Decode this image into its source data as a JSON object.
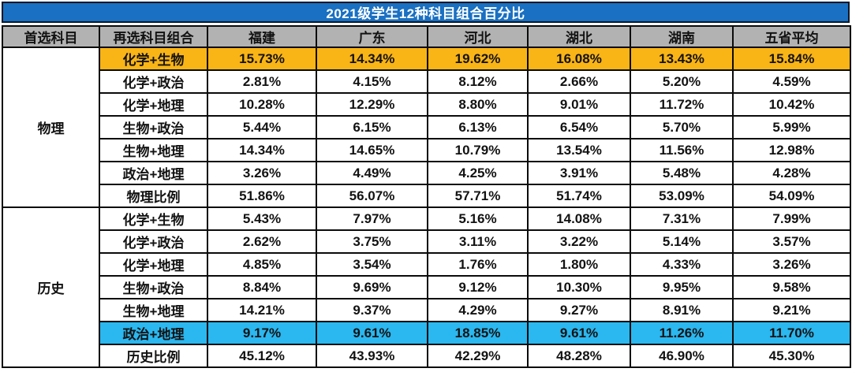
{
  "title": "2021级学生12种科目组合百分比",
  "columns": [
    "首选科目",
    "再选科目组合",
    "福建",
    "广东",
    "河北",
    "湖北",
    "湖南",
    "五省平均"
  ],
  "sections": [
    {
      "subject": "物理",
      "rows": [
        {
          "combo": "化学+生物",
          "highlight": "orange",
          "values": [
            "15.73%",
            "14.34%",
            "19.62%",
            "16.08%",
            "13.43%",
            "15.84%"
          ]
        },
        {
          "combo": "化学+政治",
          "highlight": "",
          "values": [
            "2.81%",
            "4.15%",
            "8.12%",
            "2.66%",
            "5.20%",
            "4.59%"
          ]
        },
        {
          "combo": "化学+地理",
          "highlight": "",
          "values": [
            "10.28%",
            "12.29%",
            "8.80%",
            "9.01%",
            "11.72%",
            "10.42%"
          ]
        },
        {
          "combo": "生物+政治",
          "highlight": "",
          "values": [
            "5.44%",
            "6.15%",
            "6.13%",
            "6.54%",
            "5.70%",
            "5.99%"
          ]
        },
        {
          "combo": "生物+地理",
          "highlight": "",
          "values": [
            "14.34%",
            "14.65%",
            "10.79%",
            "13.54%",
            "11.56%",
            "12.98%"
          ]
        },
        {
          "combo": "政治+地理",
          "highlight": "",
          "values": [
            "3.26%",
            "4.49%",
            "4.25%",
            "3.91%",
            "5.48%",
            "4.28%"
          ]
        },
        {
          "combo": "物理比例",
          "highlight": "",
          "values": [
            "51.86%",
            "56.07%",
            "57.71%",
            "51.74%",
            "53.09%",
            "54.09%"
          ]
        }
      ]
    },
    {
      "subject": "历史",
      "rows": [
        {
          "combo": "化学+生物",
          "highlight": "",
          "values": [
            "5.43%",
            "7.97%",
            "5.16%",
            "14.08%",
            "7.31%",
            "7.99%"
          ]
        },
        {
          "combo": "化学+政治",
          "highlight": "",
          "values": [
            "2.62%",
            "3.75%",
            "3.11%",
            "3.22%",
            "5.14%",
            "3.57%"
          ]
        },
        {
          "combo": "化学+地理",
          "highlight": "",
          "values": [
            "4.85%",
            "3.54%",
            "1.76%",
            "1.80%",
            "4.33%",
            "3.26%"
          ]
        },
        {
          "combo": "生物+政治",
          "highlight": "",
          "values": [
            "8.84%",
            "9.69%",
            "9.12%",
            "10.30%",
            "9.95%",
            "9.58%"
          ]
        },
        {
          "combo": "生物+地理",
          "highlight": "",
          "values": [
            "14.21%",
            "9.37%",
            "4.29%",
            "9.27%",
            "8.91%",
            "9.21%"
          ]
        },
        {
          "combo": "政治+地理",
          "highlight": "cyan",
          "values": [
            "9.17%",
            "9.61%",
            "18.85%",
            "9.61%",
            "11.26%",
            "11.70%"
          ]
        },
        {
          "combo": "历史比例",
          "highlight": "",
          "values": [
            "45.12%",
            "43.93%",
            "42.29%",
            "48.28%",
            "46.90%",
            "45.30%"
          ]
        }
      ]
    }
  ],
  "colors": {
    "title_bg": "#1a70c2",
    "title_text": "#ffffff",
    "header_bg": "#b2b2b2",
    "orange_highlight": "#f9b416",
    "cyan_highlight": "#2bb7ef",
    "border": "#0b0b0b",
    "body_text": "#121212"
  },
  "chart_data": {
    "type": "table",
    "title": "2021级学生12种科目组合百分比",
    "columns": [
      "首选科目",
      "再选科目组合",
      "福建",
      "广东",
      "河北",
      "湖北",
      "湖南",
      "五省平均"
    ],
    "rows": [
      [
        "物理",
        "化学+生物",
        "15.73%",
        "14.34%",
        "19.62%",
        "16.08%",
        "13.43%",
        "15.84%"
      ],
      [
        "物理",
        "化学+政治",
        "2.81%",
        "4.15%",
        "8.12%",
        "2.66%",
        "5.20%",
        "4.59%"
      ],
      [
        "物理",
        "化学+地理",
        "10.28%",
        "12.29%",
        "8.80%",
        "9.01%",
        "11.72%",
        "10.42%"
      ],
      [
        "物理",
        "生物+政治",
        "5.44%",
        "6.15%",
        "6.13%",
        "6.54%",
        "5.70%",
        "5.99%"
      ],
      [
        "物理",
        "生物+地理",
        "14.34%",
        "14.65%",
        "10.79%",
        "13.54%",
        "11.56%",
        "12.98%"
      ],
      [
        "物理",
        "政治+地理",
        "3.26%",
        "4.49%",
        "4.25%",
        "3.91%",
        "5.48%",
        "4.28%"
      ],
      [
        "物理",
        "物理比例",
        "51.86%",
        "56.07%",
        "57.71%",
        "51.74%",
        "53.09%",
        "54.09%"
      ],
      [
        "历史",
        "化学+生物",
        "5.43%",
        "7.97%",
        "5.16%",
        "14.08%",
        "7.31%",
        "7.99%"
      ],
      [
        "历史",
        "化学+政治",
        "2.62%",
        "3.75%",
        "3.11%",
        "3.22%",
        "5.14%",
        "3.57%"
      ],
      [
        "历史",
        "化学+地理",
        "4.85%",
        "3.54%",
        "1.76%",
        "1.80%",
        "4.33%",
        "3.26%"
      ],
      [
        "历史",
        "生物+政治",
        "8.84%",
        "9.69%",
        "9.12%",
        "10.30%",
        "9.95%",
        "9.58%"
      ],
      [
        "历史",
        "生物+地理",
        "14.21%",
        "9.37%",
        "4.29%",
        "9.27%",
        "8.91%",
        "9.21%"
      ],
      [
        "历史",
        "政治+地理",
        "9.17%",
        "9.61%",
        "18.85%",
        "9.61%",
        "11.26%",
        "11.70%"
      ],
      [
        "历史",
        "历史比例",
        "45.12%",
        "43.93%",
        "42.29%",
        "48.28%",
        "46.90%",
        "45.30%"
      ]
    ],
    "highlighted_rows": [
      {
        "section": "物理",
        "combo": "化学+生物",
        "color": "orange"
      },
      {
        "section": "历史",
        "combo": "政治+地理",
        "color": "cyan"
      }
    ],
    "legend_position": "none",
    "grid": true
  }
}
